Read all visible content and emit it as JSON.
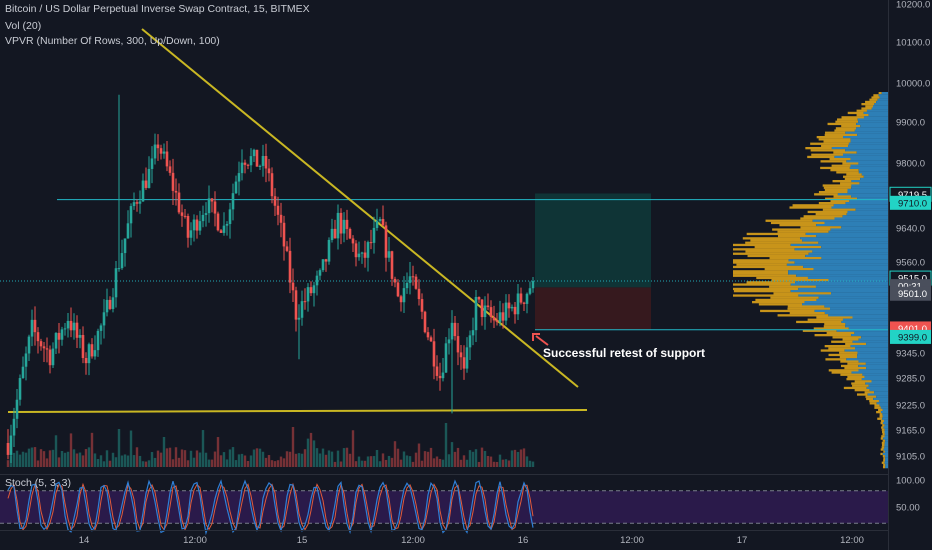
{
  "header": {
    "symbol_title": "Bitcoin / US Dollar Perpetual Inverse Swap Contract, 15, BITMEX",
    "volume_label": "Vol (20)",
    "vpvr_label": "VPVR (Number Of Rows, 300, Up/Down, 100)",
    "stoch_label": "Stoch (5, 3, 3)"
  },
  "colors": {
    "background": "#131722",
    "candle_up": "#26a69a",
    "candle_down": "#ef5350",
    "trendline": "#c9b723",
    "support_line": "#22b8c8",
    "vpvr_up": "#c8941a",
    "vpvr_down": "#2d7fb6",
    "stoch_k": "#2f7fd6",
    "stoch_d": "#e15a3a",
    "stoch_band": "#2a1a4a"
  },
  "chart_data": [
    {
      "type": "candlestick",
      "ylim": [
        9070,
        10230
      ],
      "price_ticks": [
        "10200.0",
        "10100.0",
        "10000.0",
        "9900.0",
        "9800.0",
        "9640.0",
        "9560.0",
        "9345.0",
        "9285.0",
        "9225.0",
        "9165.0",
        "9105.0"
      ],
      "time_ticks": [
        "14",
        "12:00",
        "15",
        "12:00",
        "16",
        "12:00",
        "17",
        "12:00"
      ],
      "price_badges": [
        {
          "label": "9719.5",
          "kind": "outline-teal"
        },
        {
          "label": "9710.0",
          "kind": "teal"
        },
        {
          "label": "9515.0",
          "kind": "outline-teal"
        },
        {
          "label": "00:31",
          "kind": "grey"
        },
        {
          "label": "9501.0",
          "kind": "grey"
        },
        {
          "label": "9401.0",
          "kind": "red"
        },
        {
          "label": "9399.0",
          "kind": "teal"
        }
      ],
      "levels": {
        "resistance": 9710,
        "support": 9400,
        "current": 9515,
        "take_profit": 9725,
        "entry": 9500,
        "stop": 9400
      },
      "key_prices": {
        "range_high": 9970,
        "range_low": 9205,
        "start": 9135,
        "last_close": 9515
      },
      "annotation": "Successful retest of support",
      "candle_count": 176
    },
    {
      "type": "bar",
      "name": "Vol (20)"
    },
    {
      "type": "line",
      "name": "Stoch (5, 3, 3)",
      "ylim": [
        0,
        100
      ],
      "ticks": [
        "100.00",
        "50.00"
      ],
      "band": [
        20,
        80
      ]
    }
  ]
}
